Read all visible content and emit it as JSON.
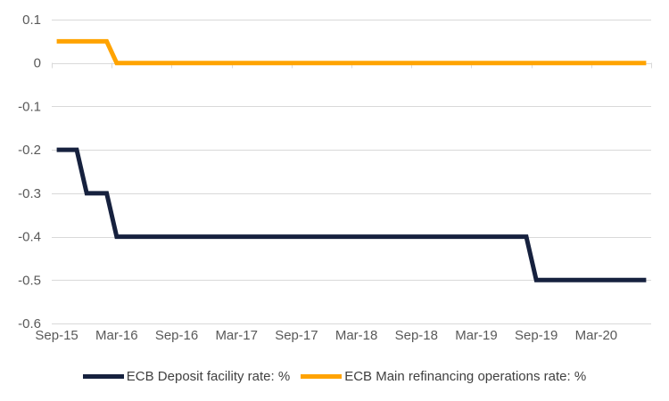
{
  "chart_data": {
    "type": "line",
    "title": "",
    "x_unit": "month",
    "x_start": "Sep-15",
    "x_end": "Aug-20",
    "x_tick_labels": [
      "Sep-15",
      "Mar-16",
      "Sep-16",
      "Mar-17",
      "Sep-17",
      "Mar-18",
      "Sep-18",
      "Mar-19",
      "Sep-19",
      "Mar-20"
    ],
    "x_tick_interval_months": 6,
    "y_ticks": [
      0.1,
      0,
      -0.1,
      -0.2,
      -0.3,
      -0.4,
      -0.5,
      -0.6
    ],
    "y_tick_labels": [
      "0.1",
      "0",
      "-0.1",
      "-0.2",
      "-0.3",
      "-0.4",
      "-0.5",
      "-0.6"
    ],
    "ylim": [
      -0.6,
      0.1
    ],
    "grid": "horizontal",
    "legend_position": "bottom",
    "series": [
      {
        "name": "ECB Deposit facility rate: %",
        "color": "#16213E",
        "points": [
          [
            "Sep-15",
            -0.2
          ],
          [
            "Nov-15",
            -0.2
          ],
          [
            "Dec-15",
            -0.3
          ],
          [
            "Feb-16",
            -0.3
          ],
          [
            "Mar-16",
            -0.4
          ],
          [
            "Aug-19",
            -0.4
          ],
          [
            "Sep-19",
            -0.5
          ],
          [
            "Aug-20",
            -0.5
          ]
        ]
      },
      {
        "name": "ECB Main refinancing operations rate: %",
        "color": "#FFA300",
        "points": [
          [
            "Sep-15",
            0.05
          ],
          [
            "Feb-16",
            0.05
          ],
          [
            "Mar-16",
            0
          ],
          [
            "Aug-20",
            0
          ]
        ]
      }
    ]
  },
  "colors": {
    "background": "#FFFFFF",
    "gridline": "#D9D9D9",
    "axis_text": "#595959",
    "legend_text": "#404040"
  }
}
